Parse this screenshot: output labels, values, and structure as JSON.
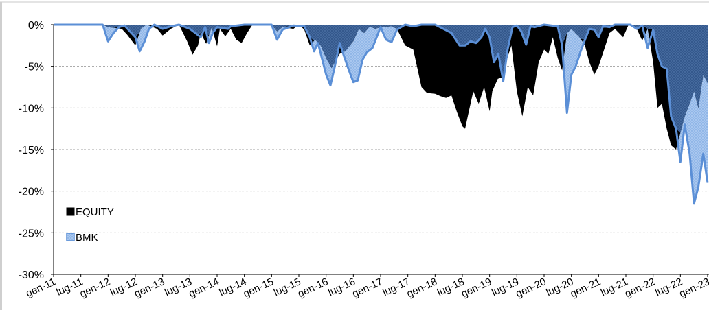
{
  "chart_data": {
    "type": "area",
    "title": "",
    "xlabel": "",
    "ylabel": "",
    "ylim": [
      -30,
      0
    ],
    "x_range": [
      "2011-01",
      "2023-01"
    ],
    "y_ticks": [
      "0%",
      "-5%",
      "-10%",
      "-15%",
      "-20%",
      "-25%",
      "-30%"
    ],
    "x_ticks": [
      "gen-11",
      "lug-11",
      "gen-12",
      "lug-12",
      "gen-13",
      "lug-13",
      "gen-14",
      "lug-14",
      "gen-15",
      "lug-15",
      "gen-16",
      "lug-16",
      "gen-17",
      "lug-17",
      "gen-18",
      "lug-18",
      "gen-19",
      "lug-19",
      "gen-20",
      "lug-20",
      "gen-21",
      "lug-21",
      "gen-22",
      "lug-22",
      "gen-23"
    ],
    "grid": true,
    "legend_position": "bottom-left",
    "series": [
      {
        "name": "EQUITY",
        "color": "#000000",
        "points": [
          [
            2011.0,
            0
          ],
          [
            2011.9,
            0
          ],
          [
            2012.0,
            -0.3
          ],
          [
            2012.25,
            -0.5
          ],
          [
            2012.35,
            -1.2
          ],
          [
            2012.5,
            -2.5
          ],
          [
            2012.6,
            -0.5
          ],
          [
            2012.7,
            0
          ],
          [
            2012.9,
            -0.5
          ],
          [
            2013.0,
            -1.3
          ],
          [
            2013.15,
            -0.5
          ],
          [
            2013.3,
            0
          ],
          [
            2013.45,
            -2.0
          ],
          [
            2013.55,
            -3.6
          ],
          [
            2013.65,
            -2.5
          ],
          [
            2013.7,
            -1.0
          ],
          [
            2013.8,
            -2.3
          ],
          [
            2013.9,
            -0.3
          ],
          [
            2014.0,
            -2.6
          ],
          [
            2014.05,
            -0.5
          ],
          [
            2014.15,
            -1.4
          ],
          [
            2014.25,
            -0.5
          ],
          [
            2014.35,
            -1.8
          ],
          [
            2014.45,
            -2.2
          ],
          [
            2014.55,
            -1.0
          ],
          [
            2014.65,
            0
          ],
          [
            2015.0,
            0
          ],
          [
            2015.1,
            -0.8
          ],
          [
            2015.2,
            -0.3
          ],
          [
            2015.4,
            -0.5
          ],
          [
            2015.5,
            0
          ],
          [
            2015.6,
            -0.6
          ],
          [
            2015.7,
            -2.5
          ],
          [
            2015.8,
            -1.8
          ],
          [
            2015.9,
            -2.5
          ],
          [
            2016.0,
            -4.0
          ],
          [
            2016.1,
            -5.2
          ],
          [
            2016.25,
            -3.5
          ],
          [
            2016.35,
            -3.2
          ],
          [
            2016.5,
            -2.0
          ],
          [
            2016.6,
            -0.5
          ],
          [
            2016.7,
            -1.0
          ],
          [
            2016.8,
            -0.2
          ],
          [
            2016.9,
            -0.5
          ],
          [
            2017.0,
            -0.3
          ],
          [
            2017.2,
            -0.2
          ],
          [
            2017.3,
            -0.5
          ],
          [
            2017.45,
            -2.5
          ],
          [
            2017.6,
            -3.0
          ],
          [
            2017.75,
            -7.5
          ],
          [
            2017.85,
            -8.2
          ],
          [
            2018.0,
            -8.3
          ],
          [
            2018.1,
            -8.6
          ],
          [
            2018.2,
            -8.8
          ],
          [
            2018.3,
            -8.5
          ],
          [
            2018.4,
            -10.5
          ],
          [
            2018.5,
            -12.2
          ],
          [
            2018.55,
            -12.5
          ],
          [
            2018.6,
            -11.0
          ],
          [
            2018.7,
            -8.0
          ],
          [
            2018.8,
            -9.5
          ],
          [
            2018.9,
            -7.5
          ],
          [
            2019.0,
            -10.4
          ],
          [
            2019.05,
            -8.0
          ],
          [
            2019.15,
            -6.5
          ],
          [
            2019.25,
            -6.3
          ],
          [
            2019.3,
            -4.5
          ],
          [
            2019.4,
            -2.5
          ],
          [
            2019.5,
            -8.0
          ],
          [
            2019.6,
            -11.0
          ],
          [
            2019.7,
            -7.5
          ],
          [
            2019.8,
            -8.5
          ],
          [
            2019.9,
            -4.5
          ],
          [
            2020.0,
            -3.0
          ],
          [
            2020.08,
            -3.5
          ],
          [
            2020.16,
            -1.5
          ],
          [
            2020.25,
            -4.0
          ],
          [
            2020.33,
            -5.5
          ],
          [
            2020.42,
            -1.0
          ],
          [
            2020.5,
            -0.5
          ],
          [
            2020.65,
            -1.5
          ],
          [
            2020.75,
            -2.5
          ],
          [
            2020.83,
            -4.5
          ],
          [
            2020.92,
            -6.0
          ],
          [
            2021.0,
            -5.0
          ],
          [
            2021.1,
            -3.0
          ],
          [
            2021.2,
            -1.0
          ],
          [
            2021.3,
            -0.5
          ],
          [
            2021.45,
            -1.5
          ],
          [
            2021.55,
            0
          ],
          [
            2021.7,
            -0.5
          ],
          [
            2021.8,
            -1.9
          ],
          [
            2021.9,
            -0.5
          ],
          [
            2022.0,
            -4.5
          ],
          [
            2022.08,
            -10.0
          ],
          [
            2022.16,
            -9.5
          ],
          [
            2022.25,
            -12.5
          ],
          [
            2022.33,
            -14.5
          ],
          [
            2022.42,
            -15.0
          ],
          [
            2022.5,
            -13.0
          ],
          [
            2022.58,
            -11.0
          ],
          [
            2022.67,
            -9.5
          ],
          [
            2022.75,
            -8.0
          ],
          [
            2022.83,
            -10.0
          ],
          [
            2022.92,
            -6.0
          ],
          [
            2023.0,
            -7.0
          ]
        ]
      },
      {
        "name": "BMK",
        "color": "#5b8fd6",
        "points": [
          [
            2011.0,
            0
          ],
          [
            2011.9,
            0
          ],
          [
            2012.0,
            -2.0
          ],
          [
            2012.1,
            -1.0
          ],
          [
            2012.2,
            -0.3
          ],
          [
            2012.3,
            -0.1
          ],
          [
            2012.5,
            -1.5
          ],
          [
            2012.58,
            -3.2
          ],
          [
            2012.67,
            -2.0
          ],
          [
            2012.75,
            -0.5
          ],
          [
            2012.85,
            0
          ],
          [
            2013.0,
            -0.5
          ],
          [
            2013.15,
            -0.2
          ],
          [
            2013.3,
            0
          ],
          [
            2013.5,
            -0.5
          ],
          [
            2013.6,
            -1.0
          ],
          [
            2013.7,
            -1.5
          ],
          [
            2013.78,
            -0.3
          ],
          [
            2013.85,
            -2.2
          ],
          [
            2013.92,
            -1.0
          ],
          [
            2014.0,
            -0.3
          ],
          [
            2014.2,
            -0.5
          ],
          [
            2014.25,
            -0.2
          ],
          [
            2014.5,
            0
          ],
          [
            2015.0,
            0
          ],
          [
            2015.1,
            -1.8
          ],
          [
            2015.2,
            -0.6
          ],
          [
            2015.4,
            -0.1
          ],
          [
            2015.6,
            -0.2
          ],
          [
            2015.7,
            -1.5
          ],
          [
            2015.78,
            -3.2
          ],
          [
            2015.85,
            -2.2
          ],
          [
            2016.0,
            -6.0
          ],
          [
            2016.08,
            -7.3
          ],
          [
            2016.16,
            -5.0
          ],
          [
            2016.25,
            -2.2
          ],
          [
            2016.33,
            -3.8
          ],
          [
            2016.42,
            -5.5
          ],
          [
            2016.5,
            -6.9
          ],
          [
            2016.58,
            -6.7
          ],
          [
            2016.67,
            -4.2
          ],
          [
            2016.75,
            -3.3
          ],
          [
            2016.85,
            -2.8
          ],
          [
            2017.0,
            -0.3
          ],
          [
            2017.1,
            -1.8
          ],
          [
            2017.2,
            -2.1
          ],
          [
            2017.3,
            -0.6
          ],
          [
            2017.45,
            0
          ],
          [
            2017.6,
            -0.2
          ],
          [
            2017.75,
            0
          ],
          [
            2018.0,
            0
          ],
          [
            2018.3,
            -1.0
          ],
          [
            2018.45,
            -2.5
          ],
          [
            2018.55,
            -2.5
          ],
          [
            2018.65,
            -2.0
          ],
          [
            2018.75,
            -2.2
          ],
          [
            2018.85,
            -1.5
          ],
          [
            2018.92,
            -0.5
          ],
          [
            2019.0,
            -1.5
          ],
          [
            2019.08,
            -4.5
          ],
          [
            2019.16,
            -3.5
          ],
          [
            2019.25,
            -6.8
          ],
          [
            2019.33,
            -3.0
          ],
          [
            2019.42,
            -0.3
          ],
          [
            2019.5,
            -0.1
          ],
          [
            2019.58,
            -0.8
          ],
          [
            2019.67,
            -2.4
          ],
          [
            2019.75,
            -0.2
          ],
          [
            2019.83,
            -0.3
          ],
          [
            2020.0,
            0
          ],
          [
            2020.25,
            -0.2
          ],
          [
            2020.33,
            -2.5
          ],
          [
            2020.42,
            -10.6
          ],
          [
            2020.5,
            -6.0
          ],
          [
            2020.58,
            -5.0
          ],
          [
            2020.67,
            -3.2
          ],
          [
            2020.75,
            -1.8
          ],
          [
            2020.83,
            -0.5
          ],
          [
            2020.92,
            -0.6
          ],
          [
            2021.0,
            -1.5
          ],
          [
            2021.08,
            -0.2
          ],
          [
            2021.2,
            -0.3
          ],
          [
            2021.3,
            0
          ],
          [
            2021.58,
            0
          ],
          [
            2021.7,
            -0.5
          ],
          [
            2021.8,
            -0.1
          ],
          [
            2021.9,
            -2.8
          ],
          [
            2022.0,
            -0.6
          ],
          [
            2022.08,
            -3.5
          ],
          [
            2022.16,
            -5.0
          ],
          [
            2022.25,
            -5.3
          ],
          [
            2022.33,
            -11.0
          ],
          [
            2022.42,
            -12.5
          ],
          [
            2022.5,
            -16.5
          ],
          [
            2022.58,
            -12.0
          ],
          [
            2022.67,
            -15.5
          ],
          [
            2022.75,
            -21.5
          ],
          [
            2022.83,
            -19.5
          ],
          [
            2022.92,
            -15.5
          ],
          [
            2023.0,
            -19.0
          ]
        ]
      }
    ]
  }
}
